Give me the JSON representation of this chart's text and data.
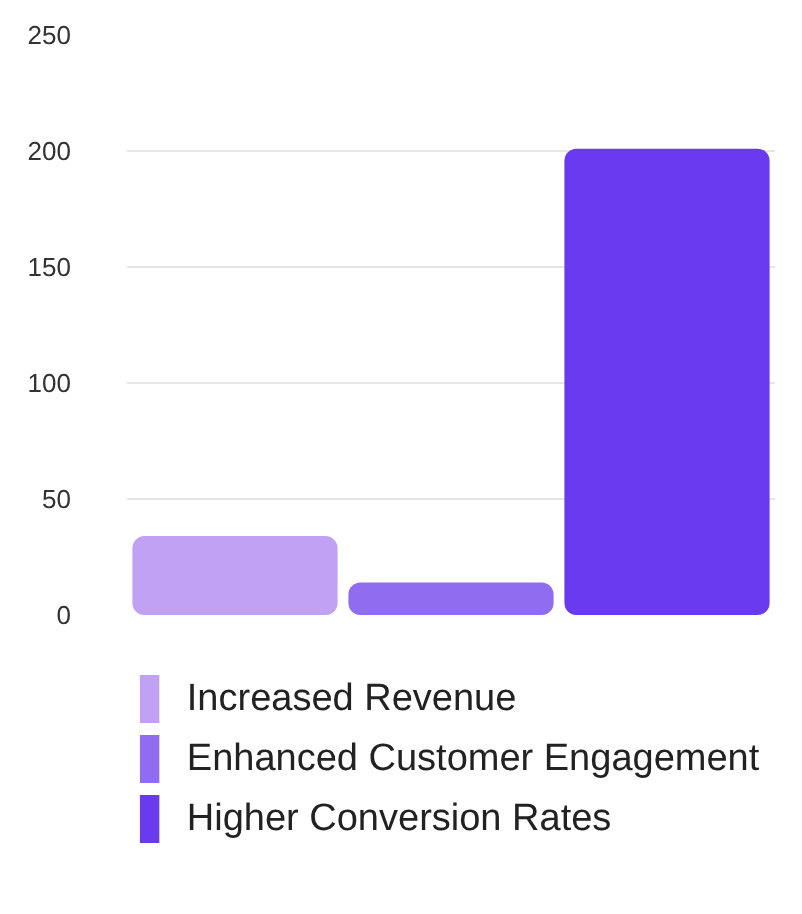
{
  "chart_data": {
    "type": "bar",
    "categories": [
      null,
      null,
      null
    ],
    "series": [
      {
        "name": "Increased Revenue",
        "color": "#c1a1f4",
        "values": [
          34,
          null,
          null
        ]
      },
      {
        "name": "Enhanced Customer Engagement",
        "color": "#8f6cf0",
        "values": [
          null,
          14,
          null
        ]
      },
      {
        "name": "Higher Conversion Rates",
        "color": "#6a3af0",
        "values": [
          null,
          null,
          201
        ]
      }
    ],
    "ylim": [
      0,
      250
    ],
    "yticks": [
      0,
      50,
      100,
      150,
      200,
      250
    ],
    "grid": "y",
    "legend": "bottom"
  }
}
